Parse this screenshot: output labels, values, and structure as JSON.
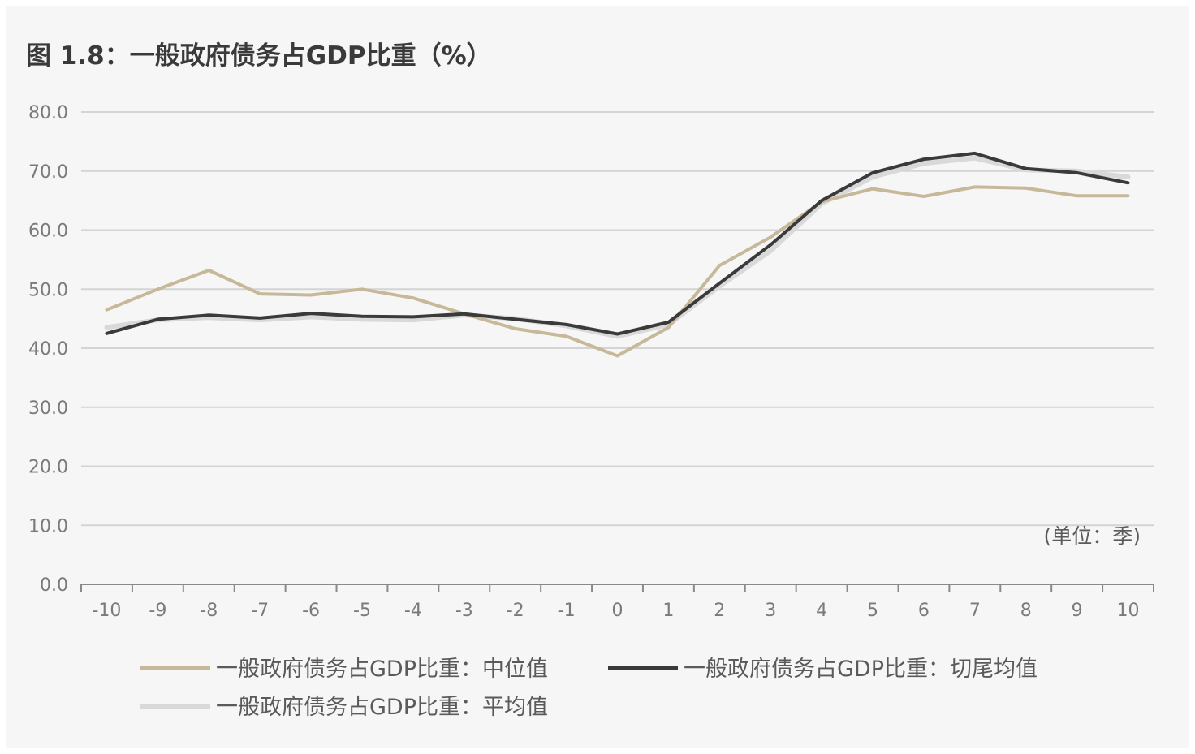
{
  "chart_data": {
    "type": "line",
    "title": "图 1.8：一般政府债务占GDP比重（%）",
    "unit_note": "(单位：季)",
    "x": [
      "-10",
      "-9",
      "-8",
      "-7",
      "-6",
      "-5",
      "-4",
      "-3",
      "-2",
      "-1",
      "0",
      "1",
      "2",
      "3",
      "4",
      "5",
      "6",
      "7",
      "8",
      "9",
      "10"
    ],
    "ylim": [
      0,
      80
    ],
    "yticks": [
      "0.0",
      "10.0",
      "20.0",
      "30.0",
      "40.0",
      "50.0",
      "60.0",
      "70.0",
      "80.0"
    ],
    "grid": true,
    "legend_position": "bottom",
    "series": [
      {
        "name": "一般政府债务占GDP比重：中位值",
        "color": "#c8b89a",
        "values": [
          46.5,
          50.0,
          53.2,
          49.2,
          49.0,
          50.0,
          48.5,
          45.8,
          43.3,
          42.0,
          38.7,
          43.5,
          54.0,
          58.8,
          64.8,
          67.0,
          65.7,
          67.3,
          67.1,
          65.8,
          65.8
        ]
      },
      {
        "name": "一般政府债务占GDP比重：切尾均值",
        "color": "#3a3a3a",
        "values": [
          42.5,
          44.9,
          45.6,
          45.1,
          45.9,
          45.4,
          45.3,
          45.8,
          44.9,
          44.0,
          42.4,
          44.4,
          51.0,
          57.5,
          65.0,
          69.7,
          72.0,
          73.0,
          70.4,
          69.7,
          68.0
        ]
      },
      {
        "name": "一般政府债务占GDP比重：平均值",
        "color": "#d9d9d9",
        "values": [
          43.5,
          44.8,
          45.2,
          44.8,
          45.3,
          44.9,
          44.8,
          45.6,
          45.0,
          43.8,
          42.0,
          44.0,
          50.5,
          56.5,
          64.5,
          69.0,
          71.3,
          72.2,
          70.2,
          70.0,
          69.0
        ]
      }
    ]
  }
}
